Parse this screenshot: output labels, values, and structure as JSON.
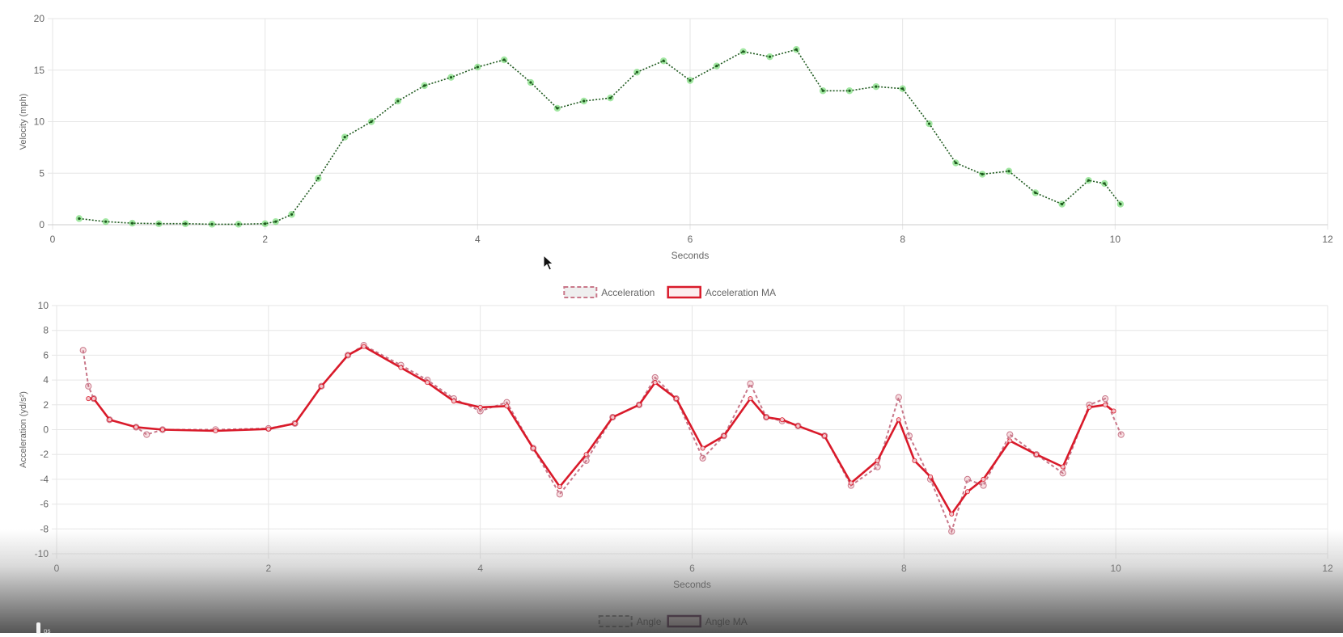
{
  "chart_data": [
    {
      "id": "velocity",
      "type": "scatter",
      "xlabel": "Seconds",
      "ylabel": "Velocity (mph)",
      "xlim": [
        0,
        12
      ],
      "ylim": [
        0,
        20
      ],
      "x_ticks": [
        0,
        2,
        4,
        6,
        8,
        10,
        12
      ],
      "y_ticks": [
        0,
        5,
        10,
        15,
        20
      ],
      "grid": true,
      "legend": [],
      "colors": {
        "points": "#55d455",
        "line": "#1f5a1f"
      },
      "series": [
        {
          "name": "",
          "x": [
            0.25,
            0.5,
            0.75,
            1.0,
            1.25,
            1.5,
            1.75,
            2.0,
            2.1,
            2.25,
            2.5,
            2.75,
            3.0,
            3.25,
            3.5,
            3.75,
            4.0,
            4.25,
            4.5,
            4.75,
            5.0,
            5.25,
            5.5,
            5.75,
            6.0,
            6.25,
            6.5,
            6.75,
            7.0,
            7.25,
            7.5,
            7.75,
            8.0,
            8.25,
            8.5,
            8.75,
            9.0,
            9.25,
            9.5,
            9.75,
            9.9,
            10.05
          ],
          "y": [
            0.6,
            0.3,
            0.15,
            0.1,
            0.1,
            0.05,
            0.05,
            0.1,
            0.3,
            1.0,
            4.5,
            8.5,
            10.0,
            12.0,
            13.5,
            14.3,
            15.3,
            16.0,
            13.8,
            11.3,
            12.0,
            12.3,
            14.8,
            15.9,
            14.0,
            15.4,
            16.8,
            16.3,
            17.0,
            13.0,
            13.0,
            13.4,
            13.2,
            9.8,
            6.0,
            4.9,
            5.2,
            3.1,
            2.0,
            4.3,
            4.0,
            2.0
          ]
        }
      ]
    },
    {
      "id": "acceleration",
      "type": "line",
      "xlabel": "Seconds",
      "ylabel": "Acceleration (yd/s²)",
      "xlim": [
        0,
        12
      ],
      "ylim": [
        -10,
        10
      ],
      "x_ticks": [
        0,
        2,
        4,
        6,
        8,
        10,
        12
      ],
      "y_ticks": [
        -10,
        -8,
        -6,
        -4,
        -2,
        0,
        2,
        4,
        6,
        8,
        10
      ],
      "grid": true,
      "legend_position": "top-center",
      "legend": [
        "Acceleration",
        "Acceleration MA"
      ],
      "colors": {
        "acceleration": "#c9788a",
        "ma": "#d91a2a",
        "points": "#e8a0aa"
      },
      "series": [
        {
          "name": "Acceleration",
          "style": "dashed",
          "x": [
            0.25,
            0.3,
            0.35,
            0.5,
            0.75,
            0.85,
            1.0,
            1.5,
            2.0,
            2.25,
            2.5,
            2.75,
            2.9,
            3.25,
            3.5,
            3.75,
            4.0,
            4.25,
            4.5,
            4.75,
            5.0,
            5.25,
            5.5,
            5.65,
            5.85,
            6.1,
            6.3,
            6.55,
            6.7,
            6.85,
            7.0,
            7.25,
            7.5,
            7.75,
            7.95,
            8.05,
            8.25,
            8.45,
            8.6,
            8.75,
            9.0,
            9.25,
            9.5,
            9.75,
            9.9,
            10.05
          ],
          "y": [
            6.4,
            3.5,
            2.5,
            0.8,
            0.2,
            -0.4,
            0.0,
            0.0,
            0.1,
            0.5,
            3.5,
            6.0,
            6.8,
            5.2,
            4.0,
            2.5,
            1.5,
            2.2,
            -1.5,
            -5.2,
            -2.5,
            1.0,
            2.0,
            4.2,
            2.5,
            -2.3,
            -0.5,
            3.7,
            1.0,
            0.7,
            0.3,
            -0.5,
            -4.5,
            -3.0,
            2.6,
            -0.5,
            -4.0,
            -8.2,
            -4.0,
            -4.5,
            -0.4,
            -2.0,
            -3.5,
            2.0,
            2.5,
            -0.4
          ]
        },
        {
          "name": "Acceleration MA",
          "style": "solid",
          "x": [
            0.3,
            0.35,
            0.5,
            0.75,
            1.0,
            1.5,
            2.0,
            2.25,
            2.5,
            2.75,
            2.9,
            3.25,
            3.5,
            3.75,
            4.0,
            4.25,
            4.5,
            4.75,
            5.0,
            5.25,
            5.5,
            5.65,
            5.85,
            6.1,
            6.3,
            6.55,
            6.7,
            6.85,
            7.0,
            7.25,
            7.5,
            7.75,
            7.95,
            8.1,
            8.25,
            8.45,
            8.6,
            8.75,
            9.0,
            9.25,
            9.5,
            9.75,
            9.9,
            9.98
          ],
          "y": [
            2.5,
            2.5,
            0.8,
            0.2,
            0.0,
            -0.1,
            0.05,
            0.5,
            3.5,
            6.0,
            6.7,
            5.0,
            3.8,
            2.3,
            1.8,
            1.9,
            -1.5,
            -4.6,
            -2.0,
            1.0,
            2.0,
            3.8,
            2.5,
            -1.5,
            -0.5,
            2.5,
            1.0,
            0.8,
            0.3,
            -0.5,
            -4.3,
            -2.5,
            0.8,
            -2.5,
            -3.8,
            -6.8,
            -5.0,
            -4.0,
            -0.9,
            -2.0,
            -3.0,
            1.8,
            2.0,
            1.5
          ]
        }
      ]
    },
    {
      "id": "angle",
      "type": "line",
      "legend_position": "top-center",
      "legend": [
        "Angle",
        "Angle MA"
      ],
      "colors": {
        "angle": "#888888",
        "ma": "#5a2550"
      }
    }
  ],
  "player": {
    "scrub_label": "ps"
  }
}
